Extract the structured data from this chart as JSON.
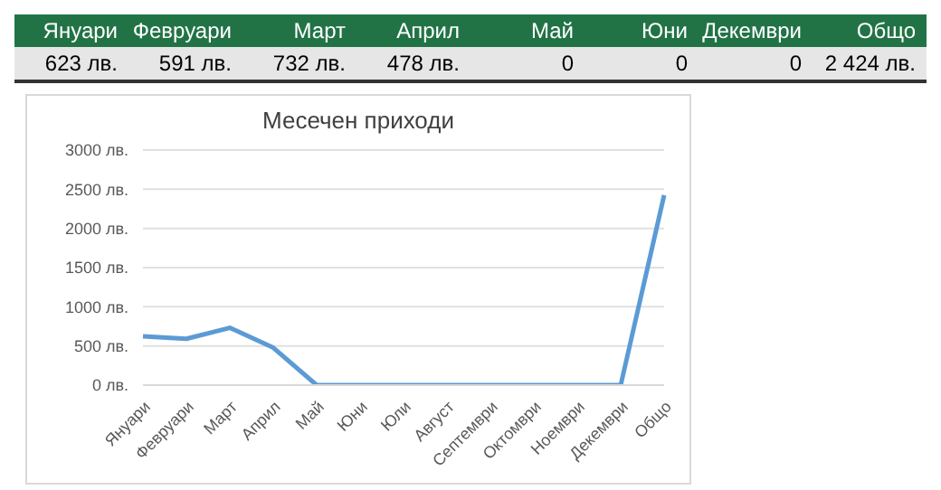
{
  "chart_data": {
    "type": "line",
    "title": "Месечен приходи",
    "categories": [
      "Януари",
      "Февруари",
      "Март",
      "Април",
      "Май",
      "Юни",
      "Юли",
      "Август",
      "Септември",
      "Октомври",
      "Ноември",
      "Декември",
      "Общо"
    ],
    "series": [
      {
        "color": "#5b9bd5",
        "values": [
          623,
          591,
          732,
          478,
          0,
          0,
          0,
          0,
          0,
          0,
          0,
          0,
          2424
        ]
      }
    ],
    "ylim": [
      0,
      3000
    ],
    "yticks": [
      {
        "value": 0,
        "label": "0 лв."
      },
      {
        "value": 500,
        "label": "500 лв."
      },
      {
        "value": 1000,
        "label": "1000 лв."
      },
      {
        "value": 1500,
        "label": "1500 лв."
      },
      {
        "value": 2000,
        "label": "2000 лв."
      },
      {
        "value": 2500,
        "label": "2500 лв."
      },
      {
        "value": 3000,
        "label": "3000 лв."
      }
    ],
    "grid": "y",
    "legend": false,
    "marker": "none",
    "line_style": "solid",
    "annotations": [
      "Януари",
      "Февруари",
      "Март",
      "Април",
      "Май",
      "Юни",
      "Декември",
      "Общо",
      "623 лв.",
      "591 лв.",
      "732 лв.",
      "478 лв.",
      "0",
      "0",
      "0",
      "2 424 лв."
    ]
  }
}
